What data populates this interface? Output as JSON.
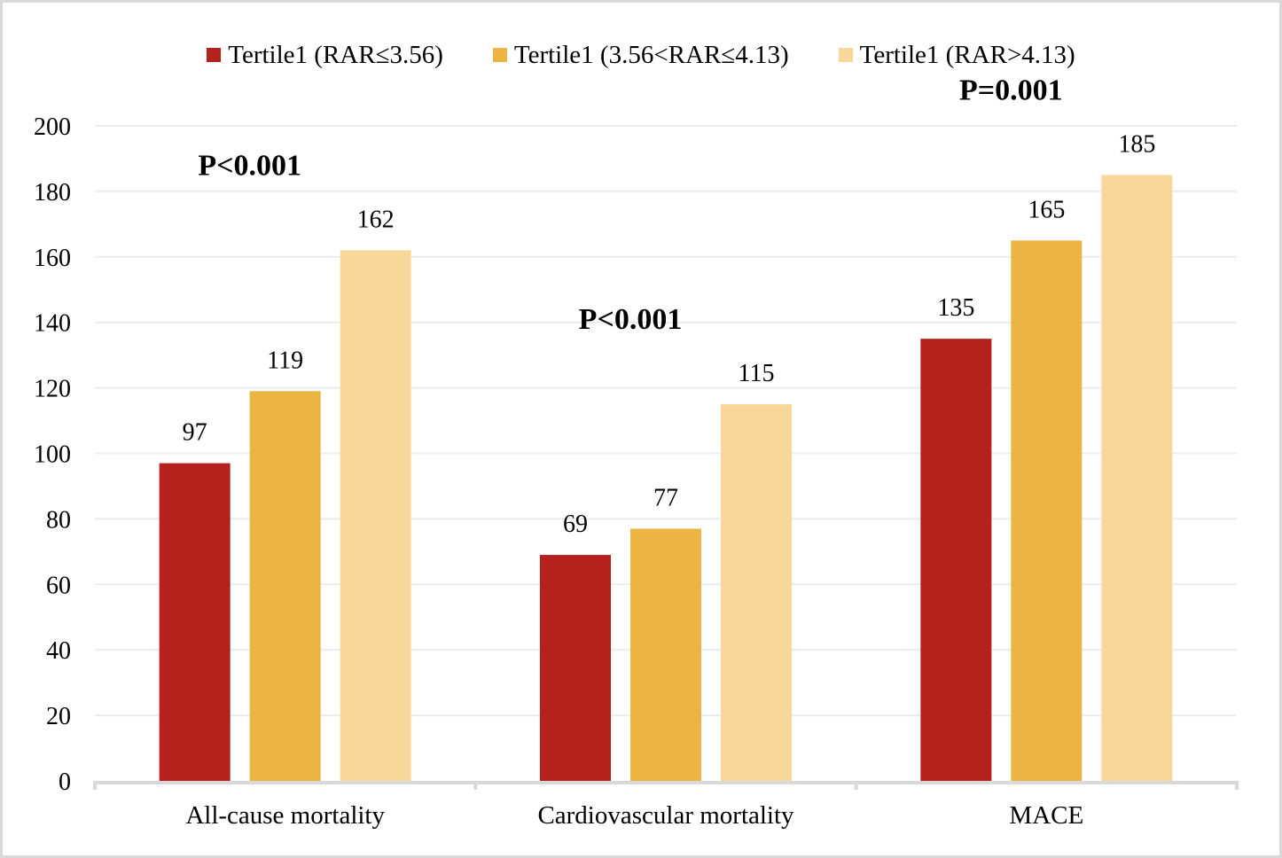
{
  "chart_data": {
    "type": "bar",
    "title": "",
    "xlabel": "",
    "ylabel": "",
    "categories": [
      "All-cause mortality",
      "Cardiovascular mortality",
      "MACE"
    ],
    "series": [
      {
        "name": "Tertile1 (RAR≤3.56)",
        "color": "#B5221E",
        "values": [
          97,
          69,
          135
        ]
      },
      {
        "name": "Tertile1 (3.56<RAR≤4.13)",
        "color": "#EBB443",
        "values": [
          119,
          77,
          165
        ]
      },
      {
        "name": "Tertile1 (RAR>4.13)",
        "color": "#F7D89A",
        "values": [
          162,
          115,
          185
        ]
      }
    ],
    "ylim": [
      0,
      200
    ],
    "yticks": [
      "0",
      "20",
      "40",
      "60",
      "80",
      "100",
      "120",
      "140",
      "160",
      "180",
      "200"
    ],
    "grid": true,
    "legend_position": "top-center",
    "annotations": [
      {
        "category": "All-cause mortality",
        "text": "P<0.001"
      },
      {
        "category": "Cardiovascular mortality",
        "text": "P<0.001"
      },
      {
        "category": "MACE",
        "text": "P=0.001"
      }
    ]
  },
  "colors": {
    "grid": "#ececec",
    "axis": "#d9d9d9",
    "border": "#d9d9d9"
  }
}
